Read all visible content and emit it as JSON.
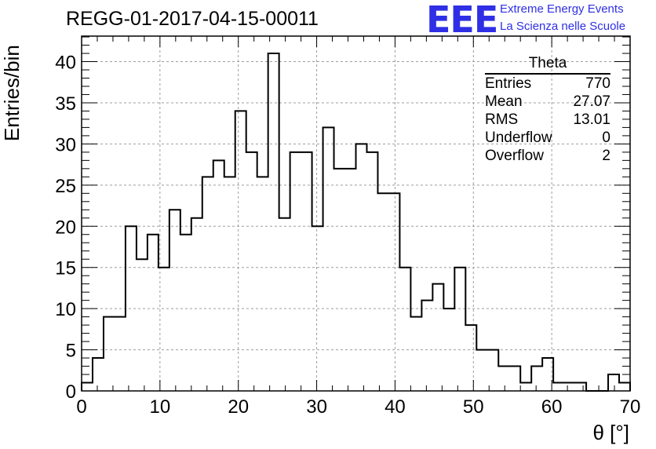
{
  "header": {
    "title": "REGG-01-2017-04-15-00011",
    "logo_mark": "EEE",
    "logo_line1": "Extreme Energy Events",
    "logo_line2": "La Scienza nelle Scuole"
  },
  "stats": {
    "title": "Theta",
    "rows": [
      {
        "label": "Entries",
        "value": "770"
      },
      {
        "label": "Mean",
        "value": "27.07"
      },
      {
        "label": "RMS",
        "value": "13.01"
      },
      {
        "label": "Underflow",
        "value": "0"
      },
      {
        "label": "Overflow",
        "value": "2"
      }
    ]
  },
  "colors": {
    "logo": "#2f2fe6",
    "grid": "#9e9e9e",
    "line": "#000000"
  },
  "chart_data": {
    "type": "histogram",
    "title": "REGG-01-2017-04-15-00011",
    "xlabel": "θ [°]",
    "ylabel": "Entries/bin",
    "xlim": [
      0,
      70
    ],
    "ylim": [
      0,
      43.1
    ],
    "bin_width": 1.4,
    "x_ticks": [
      0,
      10,
      20,
      30,
      40,
      50,
      60,
      70
    ],
    "y_ticks": [
      0,
      5,
      10,
      15,
      20,
      25,
      30,
      35,
      40
    ],
    "grid": true,
    "values": [
      1,
      4,
      9,
      9,
      20,
      16,
      19,
      15,
      22,
      19,
      21,
      26,
      28,
      26,
      34,
      29,
      26,
      41,
      21,
      29,
      29,
      20,
      32,
      27,
      27,
      30,
      29,
      24,
      24,
      15,
      9,
      11,
      13,
      10,
      15,
      8,
      5,
      5,
      3,
      3,
      1,
      3,
      4,
      1,
      1,
      1,
      0,
      0,
      2,
      1
    ]
  }
}
